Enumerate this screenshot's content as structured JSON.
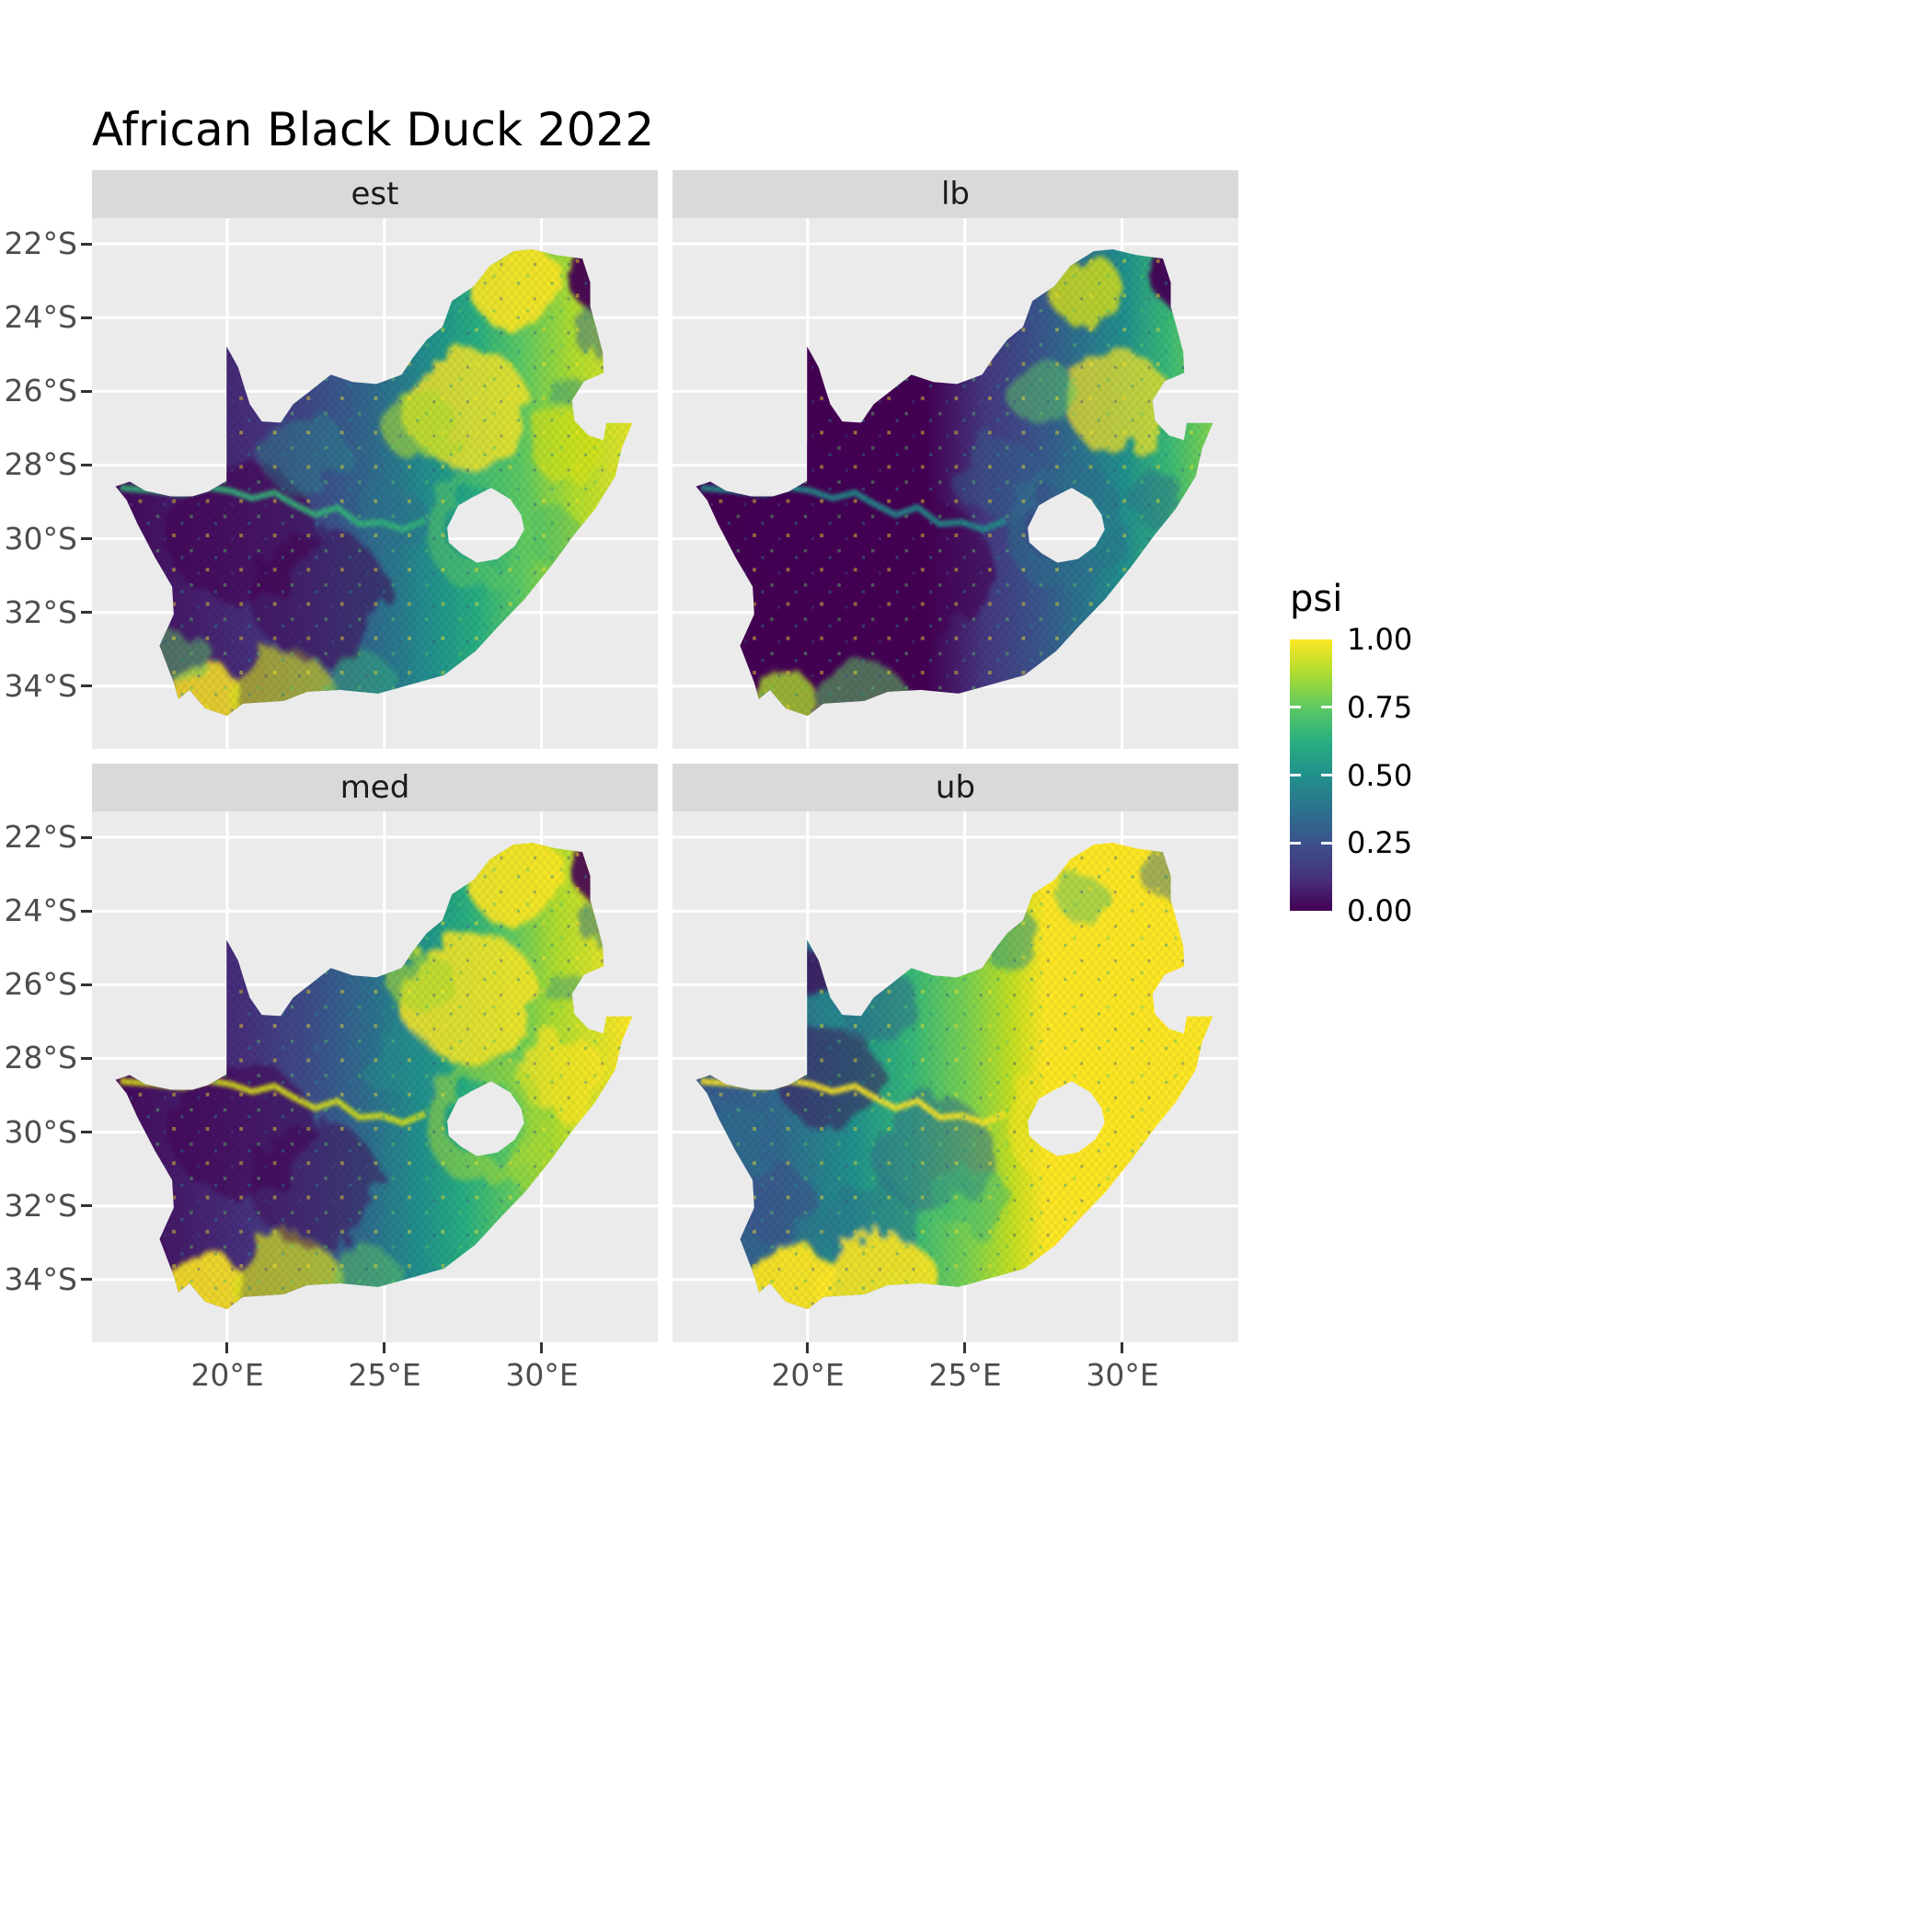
{
  "title": "African Black Duck 2022",
  "facets": [
    {
      "id": "est",
      "label": "est"
    },
    {
      "id": "lb",
      "label": "lb"
    },
    {
      "id": "med",
      "label": "med"
    },
    {
      "id": "ub",
      "label": "ub"
    }
  ],
  "axes": {
    "y_ticks": [
      "22°S",
      "24°S",
      "26°S",
      "28°S",
      "30°S",
      "32°S",
      "34°S"
    ],
    "x_ticks": [
      "20°E",
      "25°E",
      "30°E"
    ]
  },
  "legend": {
    "title": "psi",
    "ticks": [
      "1.00",
      "0.75",
      "0.50",
      "0.25",
      "0.00"
    ]
  },
  "colors": {
    "panel_bg": "#ebebeb",
    "strip_bg": "#d9d9d9",
    "grid_line": "#ffffff",
    "axis_text": "#4d4d4d",
    "tick_mark": "#333333",
    "viridis_low": "#440154",
    "viridis_mid": "#21918c",
    "viridis_high": "#fde725"
  },
  "chart_data": {
    "type": "heatmap",
    "subtype": "faceted_raster_map",
    "title": "African Black Duck 2022",
    "region": "South Africa",
    "facets": [
      "est",
      "lb",
      "med",
      "ub"
    ],
    "fill_variable": "psi",
    "fill_scale": {
      "palette": "viridis",
      "limits": [
        0.0,
        1.0
      ],
      "breaks": [
        1.0,
        0.75,
        0.5,
        0.25,
        0.0
      ],
      "break_labels": [
        "1.00",
        "0.75",
        "0.50",
        "0.25",
        "0.00"
      ],
      "colors": {
        "0.00": "#440154",
        "0.25": "#3b528b",
        "0.50": "#21918c",
        "0.75": "#5ec962",
        "1.00": "#fde725"
      }
    },
    "x_axis": {
      "ticks": [
        20,
        25,
        30
      ],
      "tick_labels": [
        "20°E",
        "25°E",
        "30°E"
      ],
      "range_deg_E": [
        15.7,
        33.7
      ]
    },
    "y_axis": {
      "ticks": [
        22,
        24,
        26,
        28,
        30,
        32,
        34
      ],
      "tick_labels": [
        "22°S",
        "24°S",
        "26°S",
        "28°S",
        "30°S",
        "32°S",
        "34°S"
      ],
      "range_deg_S": [
        21.3,
        35.7
      ]
    },
    "grid": true,
    "legend_position": "right",
    "excluded_areas": [
      "Lesotho",
      "Eswatini"
    ],
    "approx_regional_psi": {
      "est": {
        "west_interior": 0.1,
        "central_karoo": 0.3,
        "east_escarpment": 0.9,
        "south_coast": 0.85,
        "far_northeast": 0.1
      },
      "lb": {
        "west_interior": 0.05,
        "central_karoo": 0.15,
        "east_escarpment": 0.7,
        "south_coast": 0.6,
        "far_northeast": 0.05
      },
      "med": {
        "west_interior": 0.1,
        "central_karoo": 0.35,
        "east_escarpment": 0.95,
        "south_coast": 0.9,
        "far_northeast": 0.1
      },
      "ub": {
        "west_interior": 0.35,
        "central_karoo": 0.6,
        "east_escarpment": 1.0,
        "south_coast": 1.0,
        "far_northeast": 0.3
      }
    }
  }
}
